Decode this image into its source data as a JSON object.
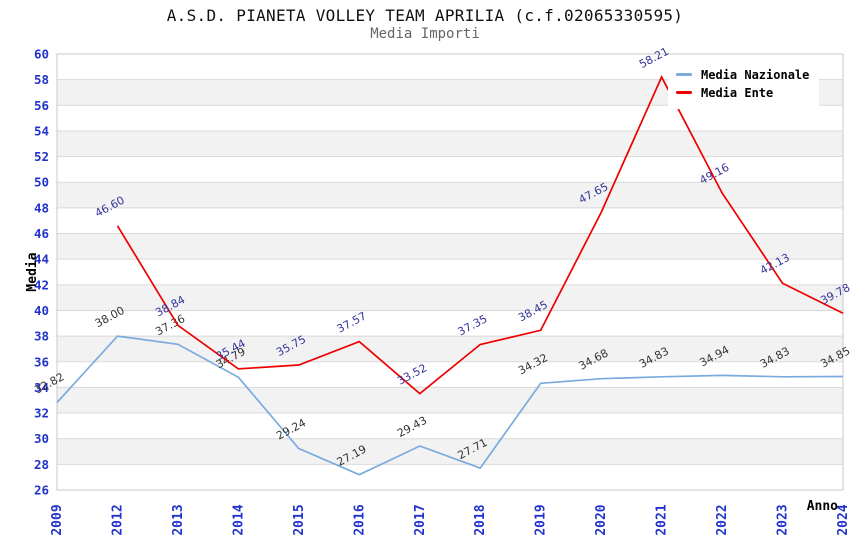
{
  "title": "A.S.D. PIANETA VOLLEY TEAM APRILIA (c.f.02065330595)",
  "subtitle": "Media Importi",
  "chart_data": {
    "type": "line",
    "title": "A.S.D. PIANETA VOLLEY TEAM APRILIA (c.f.02065330595)",
    "subtitle": "Media Importi",
    "xlabel": "Anno",
    "ylabel": "Media",
    "ylim": [
      26,
      60
    ],
    "ytick_step": 2,
    "grid": true,
    "legend_position": "top-right",
    "categories": [
      "2009",
      "2012",
      "2013",
      "2014",
      "2015",
      "2016",
      "2017",
      "2018",
      "2019",
      "2020",
      "2021",
      "2022",
      "2023",
      "2024"
    ],
    "series": [
      {
        "name": "Media Nazionale",
        "color": "#7aabdf",
        "label_color": "#333333",
        "values": [
          32.82,
          38.0,
          37.36,
          34.79,
          29.24,
          27.19,
          29.43,
          27.71,
          34.32,
          34.68,
          34.83,
          34.94,
          34.83,
          34.85
        ]
      },
      {
        "name": "Media Ente",
        "color": "#ee0000",
        "label_color": "#333399",
        "values": [
          null,
          46.6,
          38.84,
          35.44,
          35.75,
          37.57,
          33.52,
          37.35,
          38.45,
          47.65,
          58.21,
          49.16,
          42.13,
          39.78
        ]
      }
    ],
    "colors": {
      "axis_tick": "#2233cc",
      "band": "#ffffff",
      "band_alt": "#f2f2f2",
      "gridline": "#d9d9d9",
      "plot_border": "#c8c8c8",
      "title": "#111111",
      "subtitle": "#666666"
    }
  }
}
